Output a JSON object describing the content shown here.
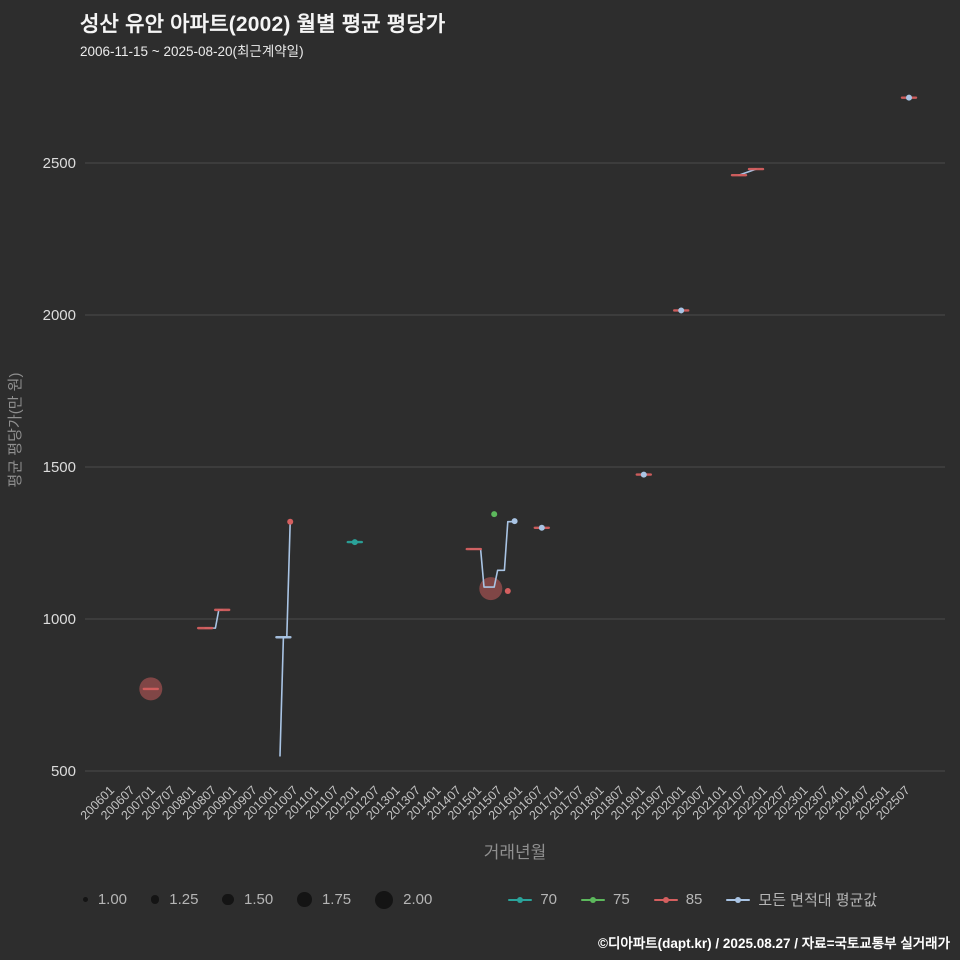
{
  "footer": {
    "credit": "©디아파트(dapt.kr) / 2025.08.27 / 자료=국토교통부 실거래가"
  },
  "colors": {
    "background": "#2d2d2d",
    "grid": "#4a4a4a",
    "y_tick_text": "#dcdcdc",
    "x_tick_text": "#c4c4c4",
    "axis_title_text": "#8f8f8f",
    "title_text": "#f5f5f5",
    "legend_text": "#b5b5b5",
    "legend_size_dot": "#141414"
  },
  "chart_data": {
    "type": "scatter",
    "title": "성산 유안 아파트(2002) 월별 평균 평당가",
    "subtitle": "2006-11-15 ~ 2025-08-20(최근계약일)",
    "xlabel": "거래년월",
    "ylabel": "평균 평당가(만 원)",
    "yticks": [
      500,
      1000,
      1500,
      2000,
      2500
    ],
    "ylim": [
      430,
      2850
    ],
    "grid": "horizontal",
    "legend_position": "bottom",
    "xticks": [
      "200601",
      "200607",
      "200701",
      "200707",
      "200801",
      "200807",
      "200901",
      "200907",
      "201001",
      "201007",
      "201101",
      "201107",
      "201201",
      "201207",
      "201301",
      "201307",
      "201401",
      "201407",
      "201501",
      "201507",
      "201601",
      "201607",
      "201701",
      "201707",
      "201801",
      "201807",
      "201901",
      "201907",
      "202001",
      "202007",
      "202101",
      "202107",
      "202201",
      "202207",
      "202301",
      "202307",
      "202401",
      "202407",
      "202501",
      "202507"
    ],
    "size_legend": [
      {
        "label": "1.00",
        "value": 1.0
      },
      {
        "label": "1.25",
        "value": 1.25
      },
      {
        "label": "1.50",
        "value": 1.5
      },
      {
        "label": "1.75",
        "value": 1.75
      },
      {
        "label": "2.00",
        "value": 2.0
      }
    ],
    "series": [
      {
        "name": "70",
        "color": "#2aa39a",
        "points": [
          {
            "x": "201201",
            "y": 1253,
            "size": 1.0,
            "marker": "dash-dot"
          }
        ]
      },
      {
        "name": "75",
        "color": "#5cb85c",
        "points": [
          {
            "x": "201506",
            "y": 1345,
            "size": 1.0,
            "marker": "dot"
          }
        ]
      },
      {
        "name": "85",
        "color": "#d45f5f",
        "points": [
          {
            "x": "200701",
            "y": 770,
            "size": 2.0,
            "marker": "bubble-dash"
          },
          {
            "x": "200805",
            "y": 970,
            "size": 1.0,
            "marker": "dash"
          },
          {
            "x": "200810",
            "y": 1030,
            "size": 1.0,
            "marker": "dash"
          },
          {
            "x": "201006",
            "y": 1320,
            "size": 1.0,
            "marker": "dot"
          },
          {
            "x": "201412",
            "y": 1230,
            "size": 1.0,
            "marker": "dash"
          },
          {
            "x": "201505",
            "y": 1100,
            "size": 2.0,
            "marker": "bubble"
          },
          {
            "x": "201510",
            "y": 1092,
            "size": 1.0,
            "marker": "dot"
          },
          {
            "x": "201608",
            "y": 1300,
            "size": 1.0,
            "marker": "dash"
          },
          {
            "x": "201902",
            "y": 1475,
            "size": 1.0,
            "marker": "dash"
          },
          {
            "x": "202001",
            "y": 2015,
            "size": 1.0,
            "marker": "dash"
          },
          {
            "x": "202106",
            "y": 2460,
            "size": 1.0,
            "marker": "dash"
          },
          {
            "x": "202111",
            "y": 2480,
            "size": 1.0,
            "marker": "dash"
          },
          {
            "x": "202508",
            "y": 2715,
            "size": 1.0,
            "marker": "dash"
          }
        ]
      },
      {
        "name": "모든 면적대 평균값",
        "color": "#a9c4e4",
        "segments": [
          [
            [
              "200805",
              970
            ],
            [
              "200808",
              970
            ],
            [
              "200809",
              1030
            ],
            [
              "200810",
              1030
            ]
          ],
          [
            [
              "201003",
              550
            ],
            [
              "201004",
              940
            ],
            [
              "201005",
              940
            ],
            [
              "201006",
              1320
            ]
          ],
          [
            [
              "201411",
              1230
            ],
            [
              "201502",
              1230
            ],
            [
              "201503",
              1105
            ],
            [
              "201506",
              1105
            ],
            [
              "201507",
              1160
            ],
            [
              "201509",
              1160
            ],
            [
              "201510",
              1320
            ],
            [
              "201512",
              1320
            ]
          ],
          [
            [
              "202106",
              2460
            ],
            [
              "202111",
              2480
            ]
          ]
        ],
        "points": [
          {
            "x": "201004",
            "y": 940,
            "size": 1.0,
            "marker": "dash"
          },
          {
            "x": "201512",
            "y": 1322,
            "size": 1.0,
            "marker": "dot"
          },
          {
            "x": "201608",
            "y": 1300,
            "size": 1.0,
            "marker": "dot"
          },
          {
            "x": "201902",
            "y": 1475,
            "size": 1.0,
            "marker": "dot"
          },
          {
            "x": "202001",
            "y": 2015,
            "size": 1.0,
            "marker": "dot"
          },
          {
            "x": "202508",
            "y": 2715,
            "size": 1.0,
            "marker": "dot"
          }
        ]
      }
    ]
  }
}
